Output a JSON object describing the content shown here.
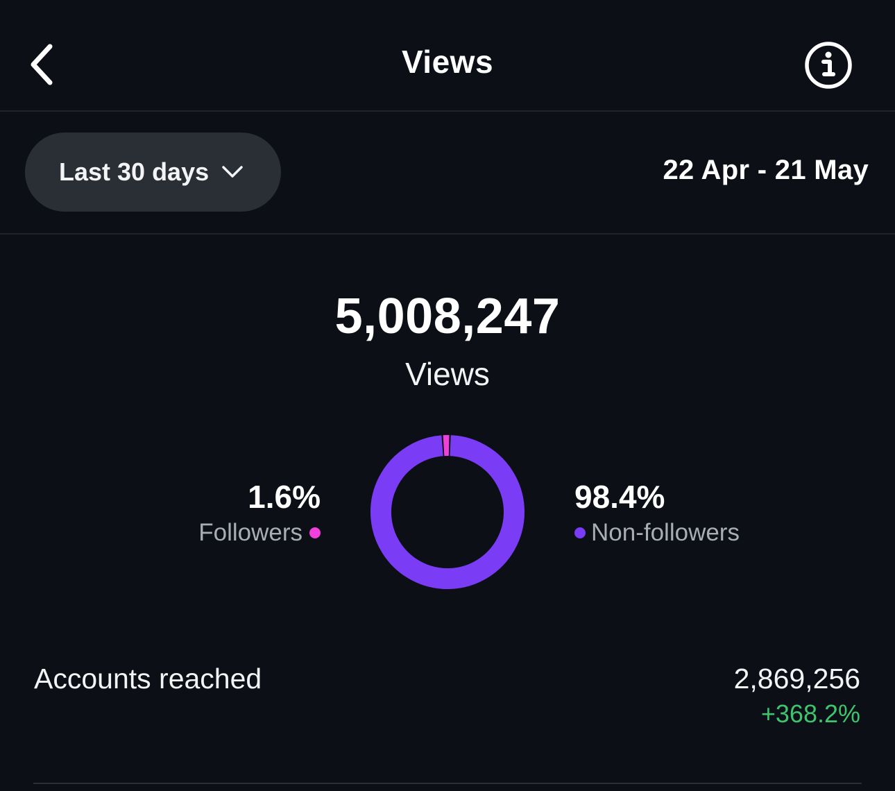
{
  "header": {
    "title": "Views",
    "back_icon": "chevron-left-icon",
    "info_icon": "info-icon"
  },
  "filter": {
    "range_label": "Last 30 days",
    "dropdown_icon": "chevron-down-icon",
    "date_range": "22 Apr - 21 May"
  },
  "summary": {
    "total_views": "5,008,247",
    "total_label": "Views"
  },
  "breakdown": {
    "followers": {
      "percent_text": "1.6%",
      "label": "Followers",
      "value": 1.6,
      "color": "#f040dc"
    },
    "non_followers": {
      "percent_text": "98.4%",
      "label": "Non-followers",
      "value": 98.4,
      "color": "#7a3cf5"
    }
  },
  "accounts_reached": {
    "label": "Accounts reached",
    "value": "2,869,256",
    "change": "+368.2%",
    "change_color": "#3ec46d"
  },
  "colors": {
    "background": "#0c0f16",
    "pill": "#2a2e35",
    "divider": "#1f232b",
    "muted_text": "#a9adb6"
  }
}
